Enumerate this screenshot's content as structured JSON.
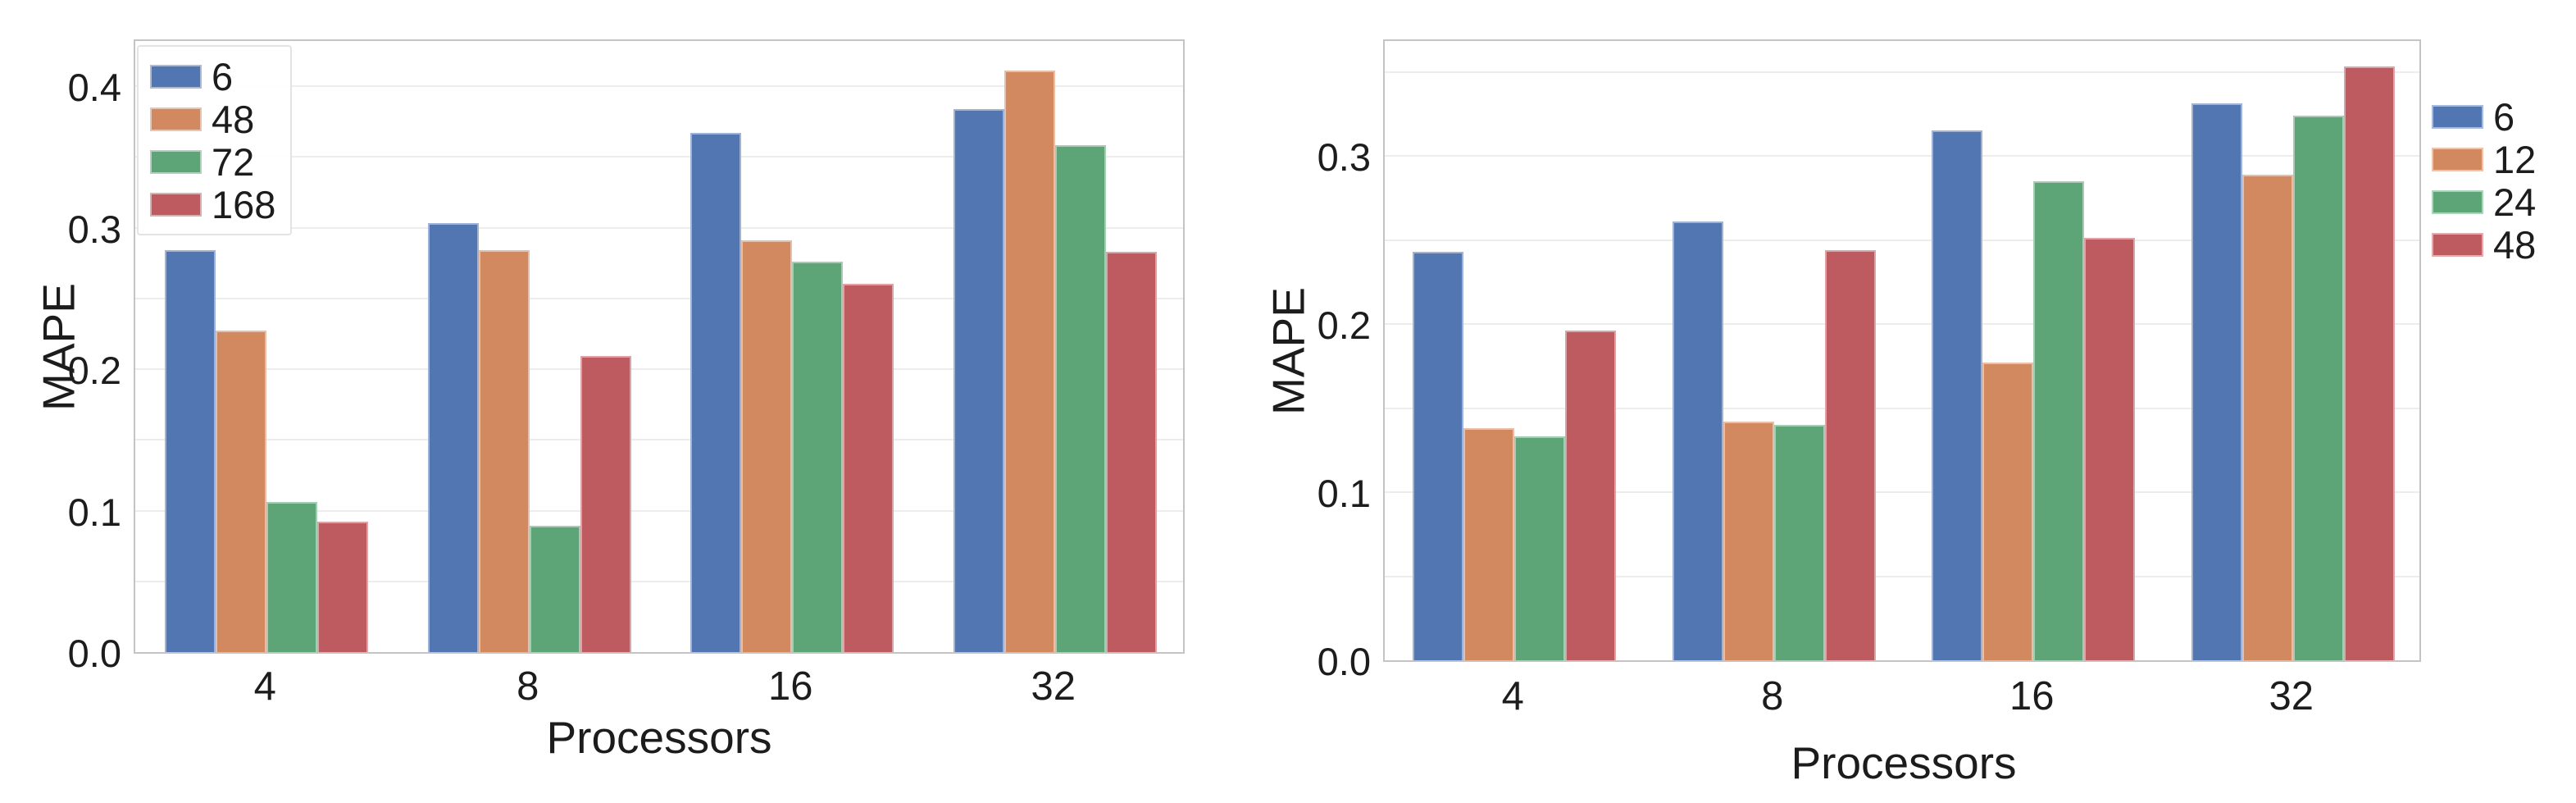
{
  "chart_data": [
    {
      "type": "bar",
      "panel": "left",
      "title": "",
      "xlabel": "Processors",
      "ylabel": "MAPE",
      "categories": [
        "4",
        "8",
        "16",
        "32"
      ],
      "series": [
        {
          "name": "6",
          "color": "#5276b2",
          "values": [
            0.284,
            0.303,
            0.367,
            0.384
          ]
        },
        {
          "name": "48",
          "color": "#d38960",
          "values": [
            0.227,
            0.284,
            0.291,
            0.411
          ]
        },
        {
          "name": "72",
          "color": "#5da577",
          "values": [
            0.106,
            0.089,
            0.276,
            0.358
          ]
        },
        {
          "name": "168",
          "color": "#bd5b61",
          "values": [
            0.092,
            0.209,
            0.26,
            0.283
          ]
        }
      ],
      "ytick_labels": [
        "0.0",
        "0.1",
        "0.2",
        "0.3",
        "0.4"
      ],
      "ytick_values": [
        0.0,
        0.1,
        0.2,
        0.3,
        0.4
      ],
      "ylim": [
        0,
        0.434
      ],
      "grid": "horizontal every 0.05, light gray, white background",
      "legend_position": "upper left inside plot"
    },
    {
      "type": "bar",
      "panel": "right",
      "title": "",
      "xlabel": "Processors",
      "ylabel": "MAPE",
      "categories": [
        "4",
        "8",
        "16",
        "32"
      ],
      "series": [
        {
          "name": "6",
          "color": "#5276b2",
          "values": [
            0.243,
            0.261,
            0.315,
            0.331
          ]
        },
        {
          "name": "12",
          "color": "#d38960",
          "values": [
            0.138,
            0.142,
            0.177,
            0.289
          ]
        },
        {
          "name": "24",
          "color": "#5da577",
          "values": [
            0.133,
            0.14,
            0.285,
            0.324
          ]
        },
        {
          "name": "48",
          "color": "#bd5b61",
          "values": [
            0.196,
            0.244,
            0.251,
            0.353
          ]
        }
      ],
      "ytick_labels": [
        "0.0",
        "0.1",
        "0.2",
        "0.3"
      ],
      "ytick_values": [
        0.0,
        0.1,
        0.2,
        0.3
      ],
      "ylim": [
        0,
        0.372
      ],
      "grid": "horizontal every 0.05, light gray, white background",
      "legend_position": "center right outside plot"
    }
  ]
}
